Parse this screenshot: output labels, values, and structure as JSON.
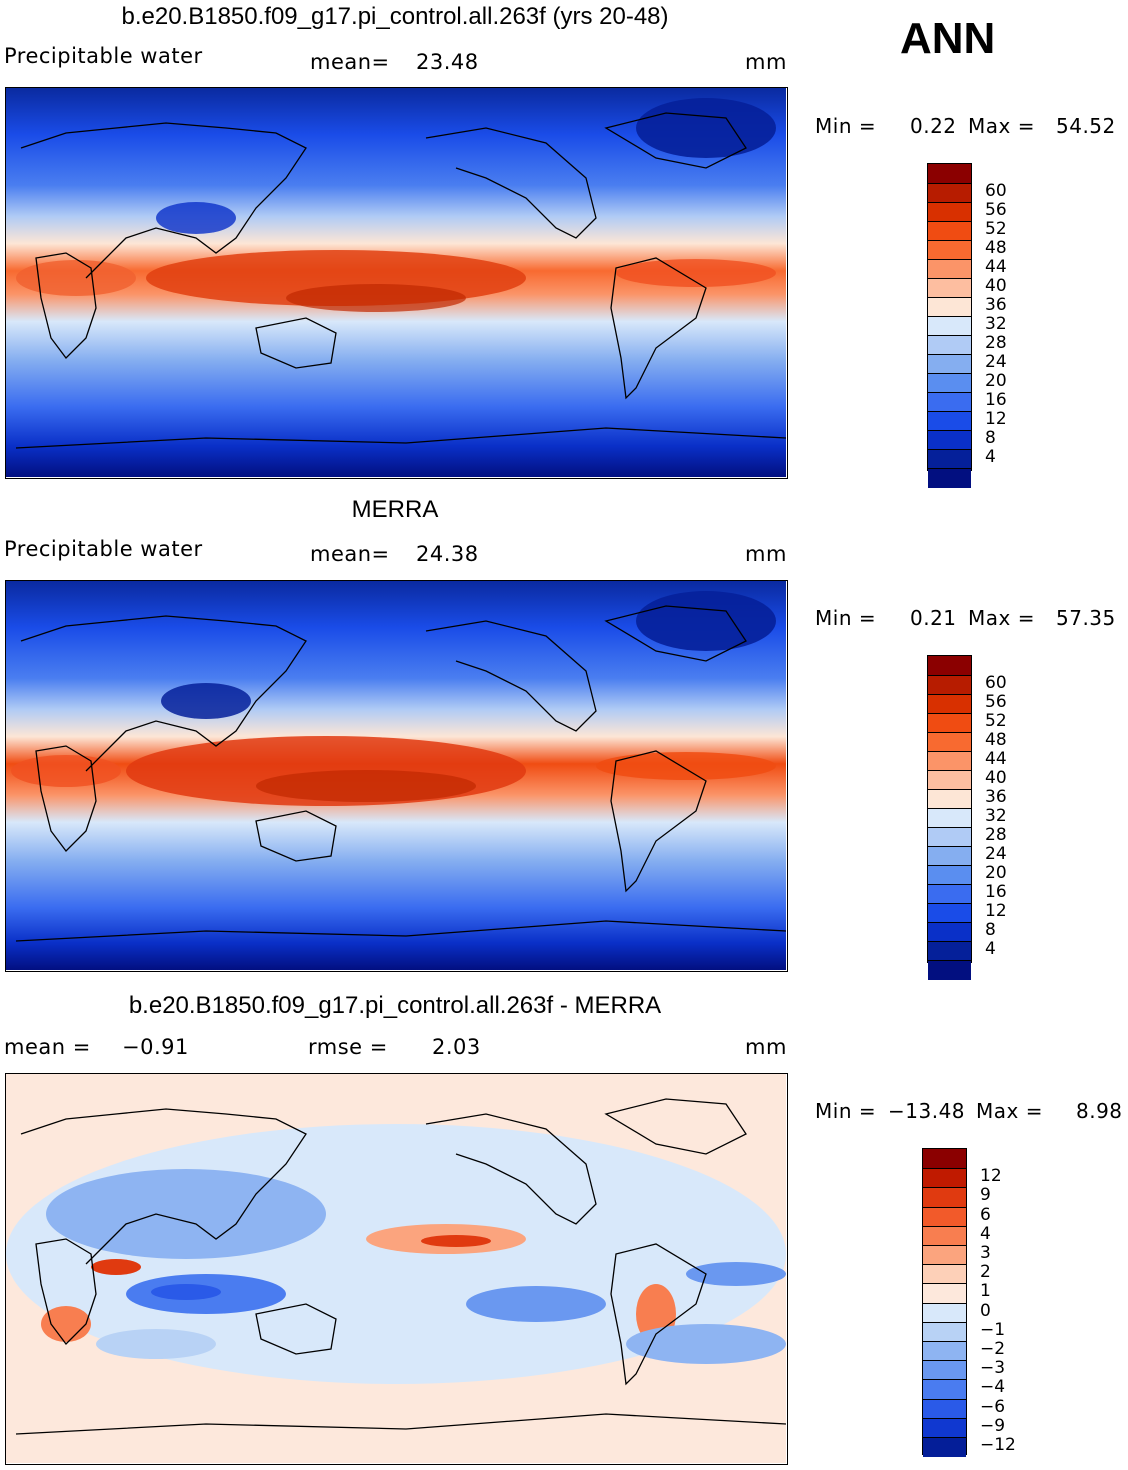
{
  "season": "ANN",
  "panels": [
    {
      "title": "b.e20.B1850.f09_g17.pi_control.all.263f (yrs 20-48)",
      "left_label": "Precipitable  water",
      "mid_label": "mean=",
      "mid_value": "23.48",
      "units": "mm",
      "min_label": "Min  =",
      "min_value": "0.22",
      "max_label": "Max  =",
      "max_value": "54.52",
      "kind": "abs",
      "colorbar": {
        "colors": [
          "#8b0000",
          "#b71c00",
          "#d83000",
          "#f04c12",
          "#f86a30",
          "#fb9468",
          "#fdbea0",
          "#fde6d6",
          "#d8e8fa",
          "#b0cbf5",
          "#85aef0",
          "#5a8ef0",
          "#3a6cf0",
          "#1a4ce8",
          "#0a30c8",
          "#05209a",
          "#020f80"
        ],
        "labels": [
          "60",
          "56",
          "52",
          "48",
          "44",
          "40",
          "36",
          "32",
          "28",
          "24",
          "20",
          "16",
          "12",
          "8",
          "4"
        ]
      }
    },
    {
      "title": "MERRA",
      "left_label": "Precipitable  water",
      "mid_label": "mean=",
      "mid_value": "24.38",
      "units": "mm",
      "min_label": "Min  =",
      "min_value": "0.21",
      "max_label": "Max  =",
      "max_value": "57.35",
      "kind": "abs",
      "colorbar": {
        "colors": [
          "#8b0000",
          "#b71c00",
          "#d83000",
          "#f04c12",
          "#f86a30",
          "#fb9468",
          "#fdbea0",
          "#fde6d6",
          "#d8e8fa",
          "#b0cbf5",
          "#85aef0",
          "#5a8ef0",
          "#3a6cf0",
          "#1a4ce8",
          "#0a30c8",
          "#05209a",
          "#020f80"
        ],
        "labels": [
          "60",
          "56",
          "52",
          "48",
          "44",
          "40",
          "36",
          "32",
          "28",
          "24",
          "20",
          "16",
          "12",
          "8",
          "4"
        ]
      }
    },
    {
      "title": "b.e20.B1850.f09_g17.pi_control.all.263f - MERRA",
      "left_label": "mean  =",
      "left_value": "−0.91",
      "mid_label": "rmse  =",
      "mid_value": "2.03",
      "units": "mm",
      "min_label": "Min  =",
      "min_value": "−13.48",
      "max_label": "Max  =",
      "max_value": "8.98",
      "kind": "diff",
      "colorbar": {
        "colors": [
          "#8b0000",
          "#c01a00",
          "#e03a10",
          "#f25a2a",
          "#f87e50",
          "#fba47e",
          "#fdd0b8",
          "#fde8dc",
          "#d8e8fa",
          "#b8d2f5",
          "#8eb4f2",
          "#6a98f0",
          "#4a7cf0",
          "#2a5ae8",
          "#1038d0",
          "#041e98"
        ],
        "labels": [
          "12",
          "9",
          "6",
          "4",
          "3",
          "2",
          "1",
          "0",
          "−1",
          "−2",
          "−3",
          "−4",
          "−6",
          "−9",
          "−12"
        ]
      }
    }
  ]
}
